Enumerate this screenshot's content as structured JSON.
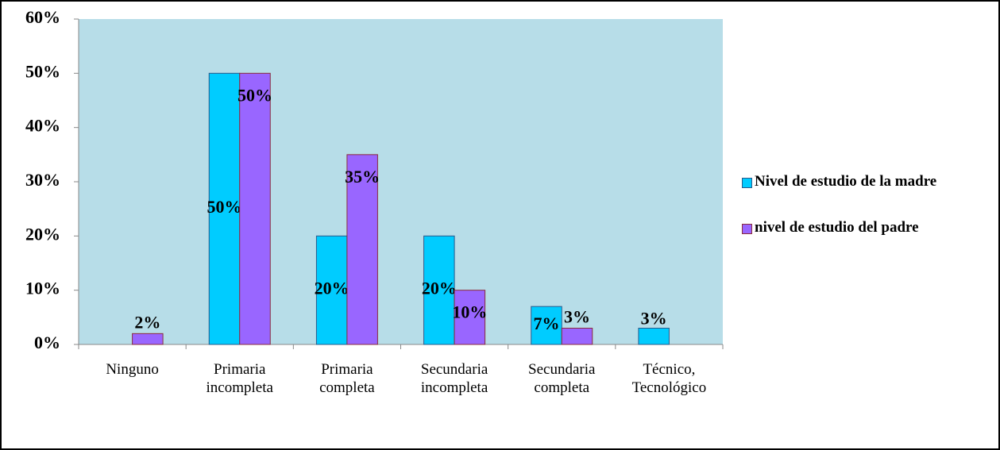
{
  "chart_data": {
    "type": "bar",
    "categories": [
      "Ninguno",
      "Primaria incompleta",
      "Primaria completa",
      "Secundaria incompleta",
      "Secundaria completa",
      "Técnico, Tecnológico"
    ],
    "series": [
      {
        "name": "Nivel de estudio de la madre",
        "color": "#00ccff",
        "values": [
          null,
          50,
          20,
          20,
          7,
          3
        ],
        "value_labels": [
          null,
          "50%",
          "20%",
          "20%",
          "7%",
          "3%"
        ]
      },
      {
        "name": "nivel de estudio del padre",
        "color": "#9966ff",
        "values": [
          2,
          50,
          35,
          10,
          3,
          null
        ],
        "value_labels": [
          "2%",
          "50%",
          "35%",
          "10%",
          "3%",
          null
        ]
      }
    ],
    "ylim": [
      0,
      60
    ],
    "yticks": [
      {
        "value": 0,
        "label": "0%"
      },
      {
        "value": 10,
        "label": "10%"
      },
      {
        "value": 20,
        "label": "20%"
      },
      {
        "value": 30,
        "label": "30%"
      },
      {
        "value": 40,
        "label": "40%"
      },
      {
        "value": 50,
        "label": "50%"
      },
      {
        "value": 60,
        "label": "60%"
      }
    ],
    "legend": "right"
  }
}
